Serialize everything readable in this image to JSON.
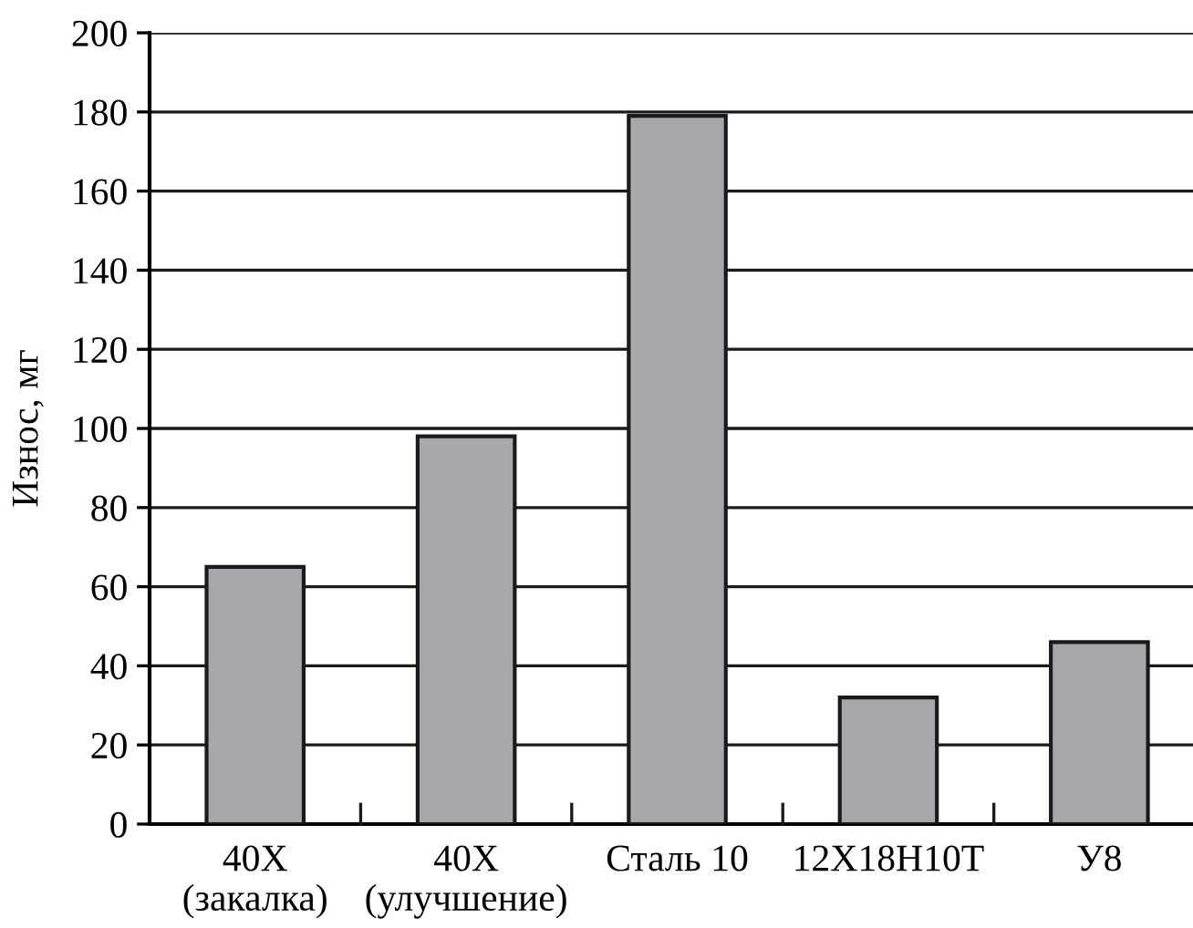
{
  "chart_data": {
    "type": "bar",
    "ylabel": "Износ, мг",
    "categories": [
      "40Х\n(закалка)",
      "40Х\n(улучшение)",
      "Сталь 10",
      "12Х18Н10Т",
      "У8"
    ],
    "values": [
      65,
      98,
      179,
      32,
      46
    ],
    "color": "#a7a8ac",
    "ylim": [
      0,
      200
    ],
    "yticks": [
      0,
      20,
      40,
      60,
      80,
      100,
      120,
      140,
      160,
      180,
      200
    ],
    "grid": "y"
  }
}
